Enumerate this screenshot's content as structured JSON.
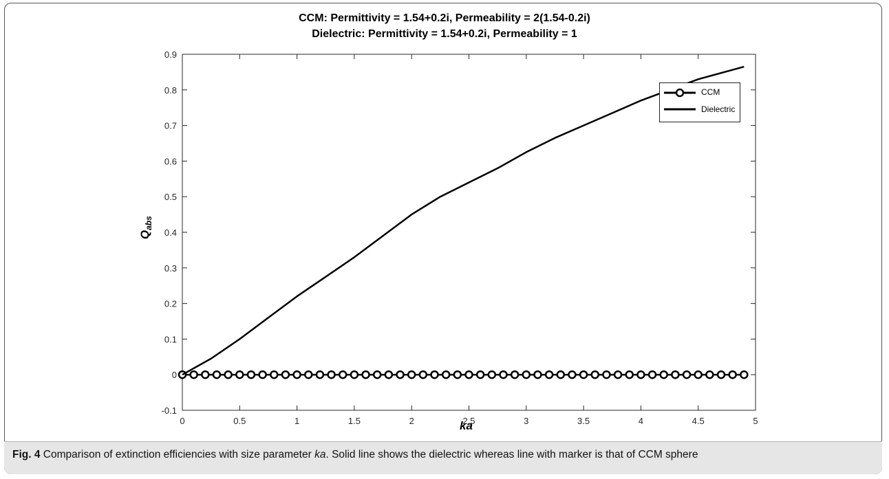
{
  "figure": {
    "title_line1": "CCM: Permittivity = 1.54+0.2i, Permeability = 2(1.54-0.2i)",
    "title_line2": "Dielectric: Permittivity = 1.54+0.2i, Permeability = 1",
    "caption_label": "Fig. 4",
    "caption_text_a": " Comparison of extinction efficiencies with size parameter ",
    "caption_italic": "ka",
    "caption_text_b": ". Solid line shows the dielectric whereas line with marker is that of CCM sphere"
  },
  "chart_data": {
    "type": "line",
    "title": "CCM: Permittivity = 1.54+0.2i, Permeability = 2(1.54-0.2i) / Dielectric: Permittivity = 1.54+0.2i, Permeability = 1",
    "xlabel": "ka",
    "ylabel": "Q",
    "ylabel_sub": "abs",
    "xlim": [
      0,
      5
    ],
    "ylim": [
      -0.1,
      0.9
    ],
    "x_ticks": [
      "0",
      "0.5",
      "1",
      "1.5",
      "2",
      "2.5",
      "3",
      "3.5",
      "4",
      "4.5",
      "5"
    ],
    "y_ticks": [
      "-0.1",
      "0",
      "0.1",
      "0.2",
      "0.3",
      "0.4",
      "0.5",
      "0.6",
      "0.7",
      "0.8",
      "0.9"
    ],
    "legend_position": "top-right",
    "grid": false,
    "series": [
      {
        "name": "CCM",
        "style": "line-circle-marker",
        "color": "#000000",
        "x": [
          0,
          0.1,
          0.2,
          0.3,
          0.4,
          0.5,
          0.6,
          0.7,
          0.8,
          0.9,
          1.0,
          1.1,
          1.2,
          1.3,
          1.4,
          1.5,
          1.6,
          1.7,
          1.8,
          1.9,
          2.0,
          2.1,
          2.2,
          2.3,
          2.4,
          2.5,
          2.6,
          2.7,
          2.8,
          2.9,
          3.0,
          3.1,
          3.2,
          3.3,
          3.4,
          3.5,
          3.6,
          3.7,
          3.8,
          3.9,
          4.0,
          4.1,
          4.2,
          4.3,
          4.4,
          4.5,
          4.6,
          4.7,
          4.8,
          4.9
        ],
        "y": [
          0,
          0,
          0,
          0,
          0,
          0,
          0,
          0,
          0,
          0,
          0,
          0,
          0,
          0,
          0,
          0,
          0,
          0,
          0,
          0,
          0,
          0,
          0,
          0,
          0,
          0,
          0,
          0,
          0,
          0,
          0,
          0,
          0,
          0,
          0,
          0,
          0,
          0,
          0,
          0,
          0,
          0,
          0,
          0,
          0,
          0,
          0,
          0,
          0,
          0
        ]
      },
      {
        "name": "Dielectric",
        "style": "solid",
        "color": "#000000",
        "x": [
          0,
          0.25,
          0.5,
          0.75,
          1.0,
          1.25,
          1.5,
          1.75,
          2.0,
          2.25,
          2.5,
          2.75,
          3.0,
          3.25,
          3.5,
          3.75,
          4.0,
          4.25,
          4.5,
          4.9
        ],
        "y": [
          0,
          0.045,
          0.1,
          0.16,
          0.22,
          0.275,
          0.33,
          0.39,
          0.45,
          0.5,
          0.54,
          0.58,
          0.625,
          0.665,
          0.7,
          0.735,
          0.77,
          0.8,
          0.83,
          0.865
        ]
      }
    ]
  }
}
